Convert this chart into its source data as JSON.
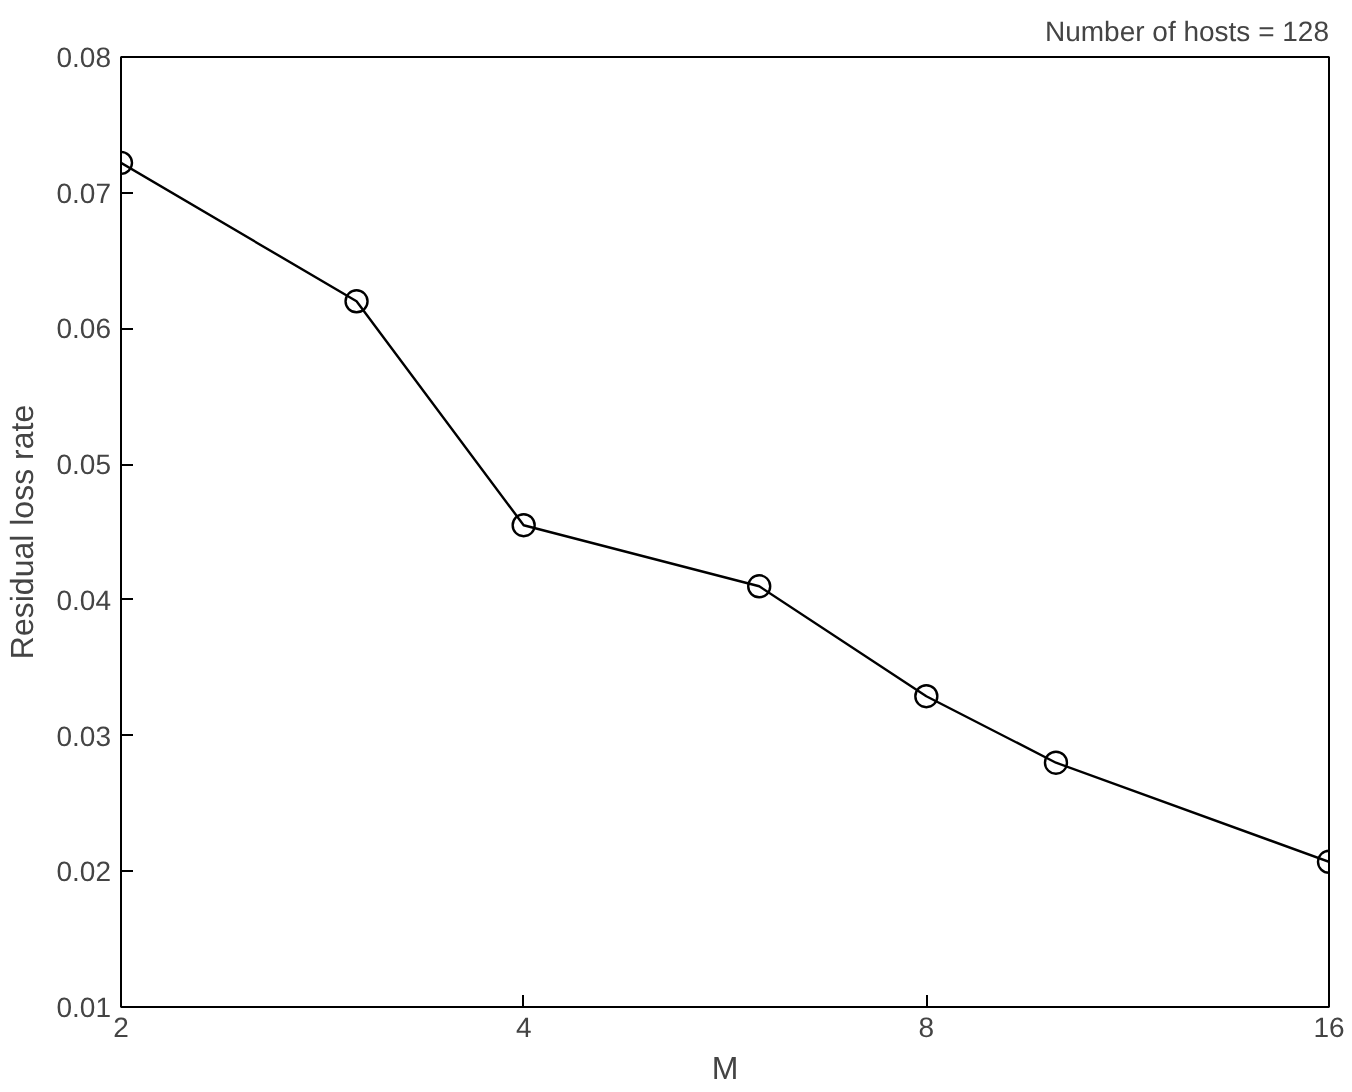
{
  "chart_data": {
    "type": "line",
    "title": "Number of hosts = 128",
    "xlabel": "M",
    "ylabel": "Residual loss rate",
    "x": [
      2,
      3,
      4,
      6,
      8,
      10,
      16
    ],
    "series": [
      {
        "color": "#000000",
        "values": [
          0.0722,
          0.062,
          0.0455,
          0.041,
          0.0329,
          0.028,
          0.0207
        ]
      }
    ],
    "log": "x",
    "xlim": [
      2,
      16
    ],
    "xticks": [
      2,
      4,
      8,
      16
    ],
    "ylim": [
      0.01,
      0.08
    ],
    "yticks": [
      0.01,
      0.02,
      0.03,
      0.04,
      0.05,
      0.06,
      0.07,
      0.08
    ],
    "grid": false,
    "marker": "circle",
    "line_style": "solid"
  }
}
